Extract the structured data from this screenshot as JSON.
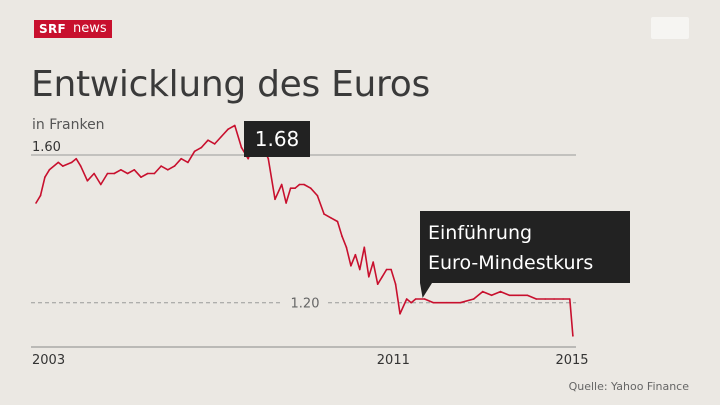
{
  "header": {
    "logo_srf": "SRF",
    "logo_news": "news",
    "title": "Entwicklung des Euros",
    "subtitle": "in Franken"
  },
  "footer": {
    "source": "Quelle: Yahoo Finance"
  },
  "colors": {
    "background": "#ebe8e3",
    "line": "#c8102e",
    "annotation_box": "#222222",
    "brand": "#c8102e"
  },
  "chart_data": {
    "type": "line",
    "title": "Entwicklung des Euros",
    "subtitle": "in Franken",
    "xlabel": "",
    "ylabel": "",
    "x_ticks": [
      "2003",
      "2011",
      "2015"
    ],
    "x_range": [
      2003.0,
      2015.0
    ],
    "ylim": [
      1.08,
      1.73
    ],
    "reference_lines": [
      {
        "value": 1.6,
        "label": "1.60",
        "style": "solid"
      },
      {
        "value": 1.2,
        "label": "1.20",
        "style": "dashed"
      }
    ],
    "annotations": [
      {
        "text": "1.68",
        "x": 2007.8,
        "y": 1.68
      },
      {
        "text_lines": [
          "Einführung",
          "Euro-Mindestkurs"
        ],
        "x": 2011.7,
        "y": 1.21
      }
    ],
    "series": [
      {
        "x": [
          2003.0,
          2003.1,
          2003.2,
          2003.3,
          2003.5,
          2003.6,
          2003.8,
          2003.9,
          2004.0,
          2004.15,
          2004.3,
          2004.45,
          2004.6,
          2004.75,
          2004.9,
          2005.05,
          2005.2,
          2005.35,
          2005.5,
          2005.65,
          2005.8,
          2005.95,
          2006.1,
          2006.25,
          2006.4,
          2006.55,
          2006.7,
          2006.85,
          2007.0,
          2007.15,
          2007.3,
          2007.45,
          2007.6,
          2007.75,
          2007.83,
          2007.95,
          2008.05,
          2008.2,
          2008.35,
          2008.5,
          2008.6,
          2008.7,
          2008.8,
          2008.9,
          2009.0,
          2009.15,
          2009.3,
          2009.45,
          2009.6,
          2009.75,
          2009.85,
          2009.95,
          2010.05,
          2010.15,
          2010.25,
          2010.35,
          2010.45,
          2010.55,
          2010.65,
          2010.75,
          2010.85,
          2010.95,
          2011.05,
          2011.15,
          2011.3,
          2011.4,
          2011.5,
          2011.7,
          2011.9,
          2012.2,
          2012.5,
          2012.8,
          2013.0,
          2013.2,
          2013.4,
          2013.6,
          2013.8,
          2014.0,
          2014.2,
          2014.4,
          2014.6,
          2014.8,
          2014.95,
          2015.02
        ],
        "y": [
          1.47,
          1.49,
          1.54,
          1.56,
          1.58,
          1.57,
          1.58,
          1.59,
          1.57,
          1.53,
          1.55,
          1.52,
          1.55,
          1.55,
          1.56,
          1.55,
          1.56,
          1.54,
          1.55,
          1.55,
          1.57,
          1.56,
          1.57,
          1.59,
          1.58,
          1.61,
          1.62,
          1.64,
          1.63,
          1.65,
          1.67,
          1.68,
          1.62,
          1.59,
          1.62,
          1.6,
          1.63,
          1.59,
          1.48,
          1.52,
          1.47,
          1.51,
          1.51,
          1.52,
          1.52,
          1.51,
          1.49,
          1.44,
          1.43,
          1.42,
          1.38,
          1.35,
          1.3,
          1.33,
          1.29,
          1.35,
          1.27,
          1.31,
          1.25,
          1.27,
          1.29,
          1.29,
          1.25,
          1.17,
          1.21,
          1.2,
          1.21,
          1.21,
          1.2,
          1.2,
          1.2,
          1.21,
          1.23,
          1.22,
          1.23,
          1.22,
          1.22,
          1.22,
          1.21,
          1.21,
          1.21,
          1.21,
          1.21,
          1.11
        ]
      }
    ]
  }
}
